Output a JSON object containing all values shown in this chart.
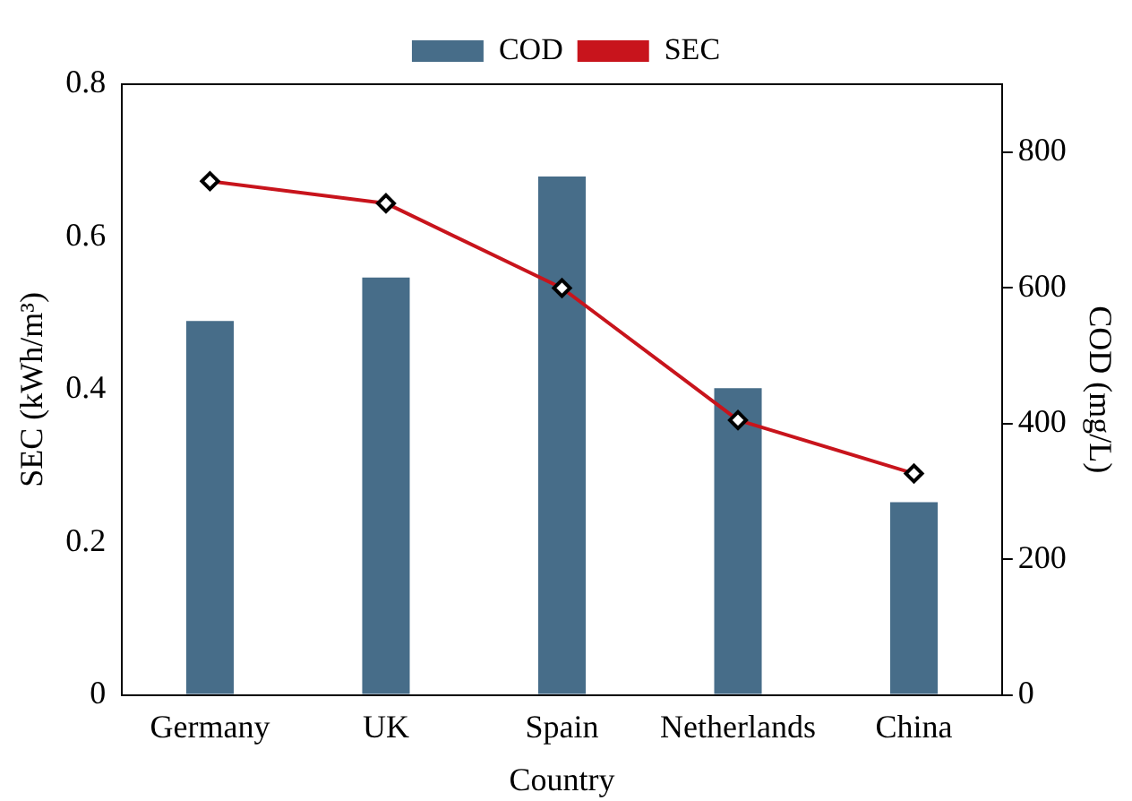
{
  "chart_data": {
    "type": "bar",
    "xlabel": "Country",
    "ylabel": "SEC (kWh/m³)",
    "y2label": "COD (mg/L)",
    "categories": [
      "Germany",
      "UK",
      "Spain",
      "Netherlands",
      "China"
    ],
    "series": [
      {
        "name": "COD",
        "axis": "y2",
        "color": "#476d89",
        "values": [
          551,
          615,
          764,
          452,
          284
        ]
      },
      {
        "name": "SEC",
        "type": "line",
        "color": "#c8141c",
        "values": [
          0.673,
          0.644,
          0.533,
          0.36,
          0.29
        ]
      }
    ],
    "ylim": [
      0,
      0.8
    ],
    "yticks": [
      0,
      0.2,
      0.4,
      0.6,
      0.8
    ],
    "y2lim": [
      0,
      900
    ],
    "y2ticks": [
      0,
      200,
      400,
      600,
      800
    ],
    "legend": "top",
    "marker": "diamond",
    "line_style": "solid",
    "grid": false
  }
}
